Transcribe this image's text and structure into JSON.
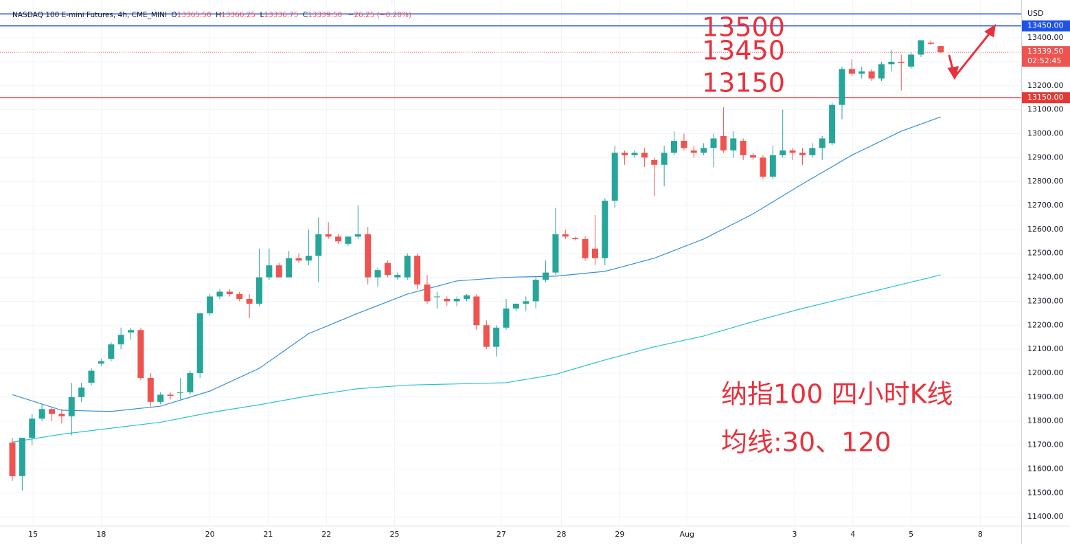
{
  "chart_data": {
    "type": "candlestick",
    "legend": {
      "name": "NASDAQ 100 E-mini Futures, 4h, CME_MINI",
      "o_key": "O",
      "open": "13365.50",
      "h_key": "H",
      "high": "13366.25",
      "l_key": "L",
      "low": "13336.75",
      "c_key": "C",
      "close": "13339.50",
      "change": "−26.25 (−0.20%)"
    },
    "currency": "USD",
    "ylim": [
      11363,
      13558
    ],
    "xlim": [
      -1.25,
      102.15
    ],
    "grid": true,
    "up_color": "#26a69a",
    "down_color": "#ef5350",
    "yticks": [
      {
        "value": 11400,
        "label": "11400.00"
      },
      {
        "value": 11500,
        "label": "11500.00"
      },
      {
        "value": 11600,
        "label": "11600.00"
      },
      {
        "value": 11700,
        "label": "11700.00"
      },
      {
        "value": 11800,
        "label": "11800.00"
      },
      {
        "value": 11900,
        "label": "11900.00"
      },
      {
        "value": 12000,
        "label": "12000.00"
      },
      {
        "value": 12100,
        "label": "12100.00"
      },
      {
        "value": 12200,
        "label": "12200.00"
      },
      {
        "value": 12300,
        "label": "12300.00"
      },
      {
        "value": 12400,
        "label": "12400.00"
      },
      {
        "value": 12500,
        "label": "12500.00"
      },
      {
        "value": 12600,
        "label": "12600.00"
      },
      {
        "value": 12700,
        "label": "12700.00"
      },
      {
        "value": 12800,
        "label": "12800.00"
      },
      {
        "value": 12900,
        "label": "12900.00"
      },
      {
        "value": 13000,
        "label": "13000.00"
      },
      {
        "value": 13100,
        "label": "13100.00"
      },
      {
        "value": 13200,
        "label": "13200.00"
      },
      {
        "value": 13300,
        "label": "13300.00"
      },
      {
        "value": 13400,
        "label": "13400.00"
      }
    ],
    "xticks": [
      {
        "value": 2.1,
        "label": "15"
      },
      {
        "value": 9,
        "label": "18"
      },
      {
        "value": 20,
        "label": "20"
      },
      {
        "value": 25.9,
        "label": "21"
      },
      {
        "value": 31.8,
        "label": "22"
      },
      {
        "value": 38.7,
        "label": "25"
      },
      {
        "value": 49.5,
        "label": "27"
      },
      {
        "value": 55.6,
        "label": "28"
      },
      {
        "value": 61.5,
        "label": "29"
      },
      {
        "value": 68.3,
        "label": "Aug"
      },
      {
        "value": 79.2,
        "label": "3"
      },
      {
        "value": 85.1,
        "label": "4"
      },
      {
        "value": 91,
        "label": "5"
      },
      {
        "value": 98,
        "label": "8"
      }
    ],
    "candles": {
      "open": [
        11710,
        11570,
        11730,
        11810,
        11850,
        11830,
        11820,
        11900,
        11960,
        12040,
        12060,
        12120,
        12170,
        12180,
        11980,
        11880,
        11910,
        11920,
        11920,
        12000,
        12250,
        12320,
        12340,
        12330,
        12310,
        12290,
        12400,
        12450,
        12400,
        12480,
        12470,
        12490,
        12580,
        12570,
        12540,
        12570,
        12580,
        12400,
        12460,
        12400,
        12400,
        12490,
        12370,
        12320,
        12310,
        12300,
        12310,
        12320,
        12200,
        12110,
        12190,
        12270,
        12290,
        12300,
        12390,
        12420,
        12580,
        12565,
        12560,
        12520,
        12480,
        12720,
        12920,
        12910,
        12920,
        12890,
        12870,
        12920,
        12970,
        12930,
        12920,
        12940,
        12990,
        12930,
        12970,
        12910,
        12900,
        12820,
        12910,
        12930,
        12920,
        12910,
        12940,
        12960,
        13120,
        13270,
        13250,
        13260,
        13230,
        13290,
        13300,
        13280,
        13330,
        13380,
        13365.5
      ],
      "high": [
        11730,
        11730,
        11830,
        11870,
        11860,
        11850,
        11960,
        11960,
        12020,
        12060,
        12130,
        12190,
        12190,
        12190,
        12000,
        11920,
        11920,
        11980,
        12010,
        12250,
        12330,
        12350,
        12350,
        12340,
        12330,
        12520,
        12520,
        12460,
        12510,
        12500,
        12600,
        12650,
        12630,
        12580,
        12570,
        12700,
        12610,
        12440,
        12470,
        12420,
        12500,
        12500,
        12410,
        12340,
        12320,
        12320,
        12330,
        12330,
        12220,
        12200,
        12310,
        12290,
        12320,
        12400,
        12470,
        12690,
        12600,
        12570,
        12570,
        12660,
        12730,
        12950,
        12930,
        12930,
        12940,
        12900,
        12950,
        13010,
        13000,
        12950,
        12960,
        13000,
        13110,
        13010,
        12980,
        12920,
        12910,
        12950,
        13100,
        12940,
        12940,
        12960,
        12990,
        13130,
        13280,
        13310,
        13280,
        13270,
        13300,
        13350,
        13330,
        13340,
        13390,
        13390,
        13366.25
      ],
      "low": [
        11550,
        11510,
        11700,
        11800,
        11800,
        11790,
        11740,
        11880,
        11950,
        12030,
        12050,
        12100,
        12140,
        11970,
        11860,
        11870,
        11890,
        11890,
        11910,
        11980,
        12240,
        12310,
        12320,
        12300,
        12230,
        12280,
        12390,
        12400,
        12400,
        12460,
        12450,
        12380,
        12560,
        12540,
        12530,
        12560,
        12370,
        12360,
        12400,
        12390,
        12390,
        12350,
        12290,
        12270,
        12280,
        12280,
        12300,
        12180,
        12100,
        12070,
        12180,
        12260,
        12260,
        12270,
        12380,
        12410,
        12560,
        12555,
        12470,
        12450,
        12450,
        12690,
        12870,
        12900,
        12860,
        12740,
        12780,
        12910,
        12930,
        12900,
        12910,
        12860,
        12920,
        12900,
        12890,
        12890,
        12810,
        12810,
        12900,
        12890,
        12870,
        12900,
        12890,
        12950,
        13060,
        13240,
        13230,
        13220,
        13220,
        13260,
        13180,
        13270,
        13320,
        13370,
        13336.75
      ],
      "close": [
        11570,
        11730,
        11810,
        11850,
        11830,
        11820,
        11900,
        11940,
        12010,
        12050,
        12120,
        12160,
        12180,
        11980,
        11880,
        11910,
        11905,
        11920,
        12000,
        12250,
        12320,
        12340,
        12330,
        12310,
        12290,
        12400,
        12450,
        12400,
        12480,
        12470,
        12490,
        12580,
        12570,
        12550,
        12570,
        12580,
        12400,
        12430,
        12410,
        12410,
        12490,
        12370,
        12300,
        12320,
        12300,
        12310,
        12325,
        12200,
        12110,
        12190,
        12270,
        12290,
        12300,
        12390,
        12420,
        12580,
        12570,
        12560,
        12480,
        12480,
        12720,
        12920,
        12910,
        12920,
        12900,
        12870,
        12920,
        12970,
        12940,
        12920,
        12940,
        12980,
        12930,
        12980,
        12910,
        12900,
        12820,
        12910,
        12930,
        12920,
        12910,
        12940,
        12980,
        13120,
        13270,
        13250,
        13260,
        13230,
        13290,
        13300,
        13295,
        13330,
        13390,
        13375,
        13339.5
      ]
    },
    "series": [
      {
        "name": "MA30",
        "color": "#2f8fdc",
        "x": [
          0,
          5,
          10,
          15,
          20,
          25,
          30,
          35,
          40,
          45,
          50,
          55,
          60,
          65,
          70,
          75,
          80,
          85,
          90,
          94
        ],
        "values": [
          11910,
          11845,
          11840,
          11862,
          11925,
          12020,
          12165,
          12250,
          12330,
          12385,
          12400,
          12405,
          12425,
          12480,
          12560,
          12665,
          12790,
          12910,
          13010,
          13070
        ]
      },
      {
        "name": "MA120",
        "color": "#26c1d6",
        "x": [
          0,
          5,
          10,
          15,
          20,
          25,
          30,
          35,
          40,
          45,
          50,
          55,
          60,
          65,
          70,
          75,
          80,
          85,
          90,
          94
        ],
        "values": [
          11712,
          11745,
          11770,
          11795,
          11835,
          11868,
          11905,
          11935,
          11950,
          11955,
          11960,
          11995,
          12055,
          12110,
          12155,
          12215,
          12270,
          12320,
          12370,
          12410
        ]
      }
    ],
    "hlines": [
      {
        "value": 13500,
        "color": "#1e53e5"
      },
      {
        "value": 13450,
        "color": "#1e53e5",
        "label": "13450.00"
      },
      {
        "value": 13150,
        "color": "#e53935",
        "label": "13150.00"
      }
    ],
    "last_price": {
      "value": 13339.5,
      "label": "13339.50",
      "countdown": "02:52:45",
      "color": "#ef5350"
    },
    "annotations": [
      "13500",
      "13450",
      "13150",
      "纳指100 四小时K线",
      "均线:30、120"
    ]
  }
}
